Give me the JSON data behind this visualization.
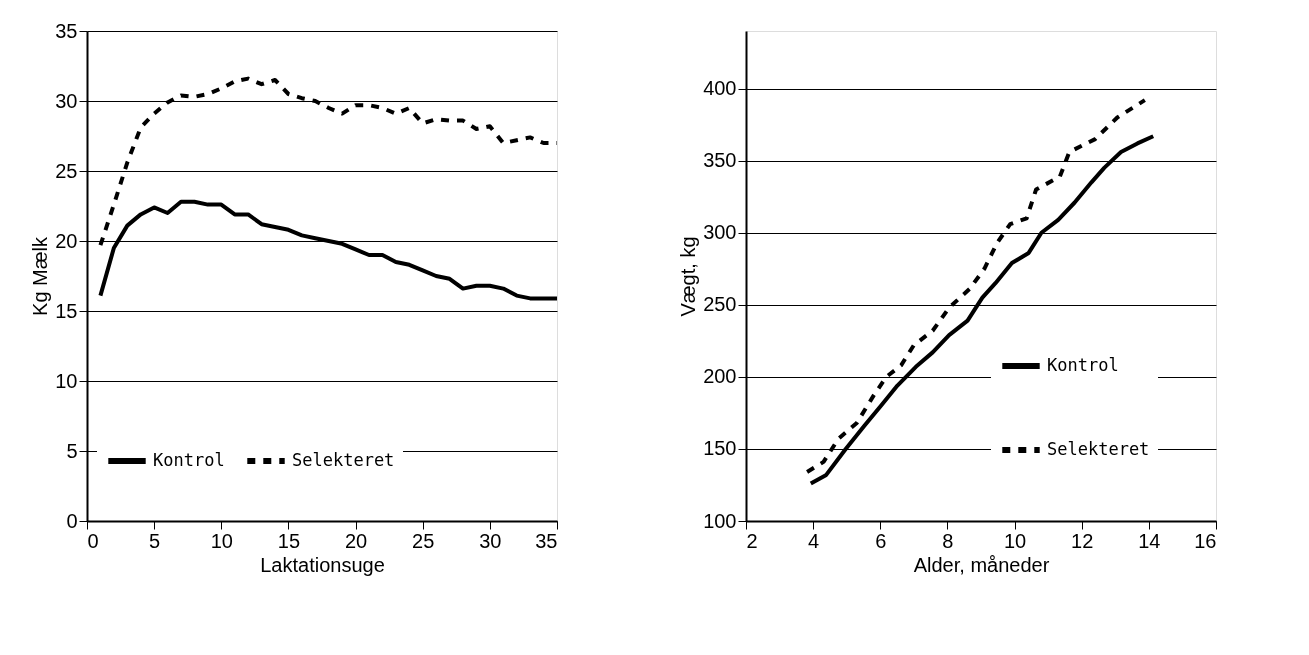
{
  "chart_data": [
    {
      "type": "line",
      "xlabel": "Laktationsuge",
      "ylabel": "Kg Mælk",
      "xlim": [
        0,
        35
      ],
      "xticks": [
        0,
        5,
        10,
        15,
        20,
        25,
        30,
        35
      ],
      "ylim": [
        0,
        35
      ],
      "yticks": [
        0,
        5,
        10,
        15,
        20,
        25,
        30,
        35
      ],
      "grid": "y",
      "legend": "bottom",
      "x": [
        1,
        2,
        3,
        4,
        5,
        6,
        7,
        8,
        9,
        10,
        11,
        12,
        13,
        14,
        15,
        16,
        17,
        18,
        19,
        20,
        21,
        22,
        23,
        24,
        25,
        26,
        27,
        28,
        29,
        30,
        31,
        32,
        33,
        34,
        35
      ],
      "series": [
        {
          "name": "Kontrol",
          "color": "#000000",
          "line_style": "solid",
          "values": [
            16.1,
            19.5,
            21.1,
            21.9,
            22.4,
            22.0,
            22.8,
            22.8,
            22.6,
            22.6,
            21.9,
            21.9,
            21.2,
            21.0,
            20.8,
            20.4,
            20.2,
            20.0,
            19.8,
            19.4,
            19.0,
            19.0,
            18.5,
            18.3,
            17.9,
            17.5,
            17.3,
            16.6,
            16.8,
            16.8,
            16.6,
            16.1,
            15.9,
            15.9,
            15.9
          ]
        },
        {
          "name": "Selekteret",
          "color": "#000000",
          "line_style": "dashed",
          "values": [
            19.7,
            22.6,
            25.6,
            28.1,
            29.1,
            29.9,
            30.4,
            30.3,
            30.5,
            30.9,
            31.4,
            31.6,
            31.2,
            31.5,
            30.5,
            30.2,
            30.0,
            29.5,
            29.1,
            29.7,
            29.7,
            29.5,
            29.1,
            29.5,
            28.4,
            28.7,
            28.6,
            28.6,
            28.0,
            28.2,
            27.0,
            27.2,
            27.4,
            27.0,
            27.0
          ]
        }
      ]
    },
    {
      "type": "line",
      "xlabel": "Alder, måneder",
      "ylabel": "Vægt, kg",
      "xlim": [
        2,
        16
      ],
      "xticks": [
        2,
        4,
        6,
        8,
        10,
        12,
        14,
        16
      ],
      "ylim": [
        100,
        440
      ],
      "yticks": [
        100,
        150,
        200,
        250,
        300,
        350,
        400
      ],
      "grid": "y",
      "legend": "right",
      "series": [
        {
          "name": "Kontrol",
          "color": "#000000",
          "line_style": "solid",
          "x": [
            3.93,
            4.39,
            4.97,
            5.52,
            6.02,
            6.51,
            7.06,
            7.56,
            8.05,
            8.6,
            9.04,
            9.43,
            9.92,
            10.42,
            10.8,
            11.3,
            11.79,
            12.29,
            12.67,
            13.17,
            13.66,
            14.13
          ],
          "values": [
            126,
            132,
            150,
            166,
            180,
            194,
            207,
            217,
            229,
            239,
            255,
            265,
            279,
            286,
            300,
            309,
            321,
            335,
            345,
            356,
            362,
            367
          ]
        },
        {
          "name": "Selekteret",
          "color": "#000000",
          "line_style": "dashed",
          "x": [
            3.82,
            4.31,
            4.75,
            5.3,
            5.8,
            6.18,
            6.62,
            7.0,
            7.56,
            8.05,
            8.66,
            9.1,
            9.48,
            9.87,
            10.36,
            10.64,
            11.35,
            11.63,
            12.4,
            13.06,
            13.88
          ],
          "values": [
            134,
            141,
            157,
            168,
            187,
            200,
            208,
            222,
            232,
            248,
            261,
            275,
            293,
            306,
            310,
            330,
            339,
            356,
            365,
            380,
            392
          ]
        }
      ]
    }
  ]
}
